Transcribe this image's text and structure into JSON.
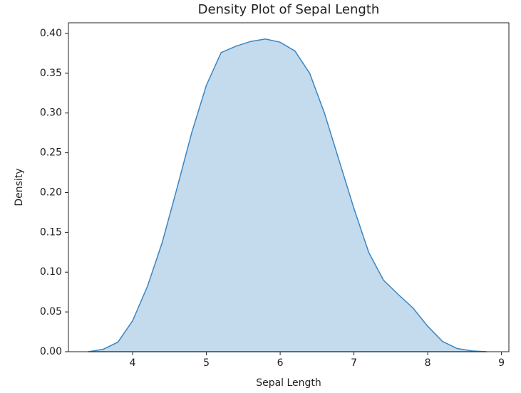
{
  "chart_data": {
    "type": "area",
    "title": "Density Plot of Sepal Length",
    "x_label": "Sepal Length",
    "y_label": "Density",
    "series": [
      {
        "color": "#3a86c2",
        "fill_opacity": 0.3,
        "x": [
          3.4,
          3.6,
          3.8,
          4.0,
          4.2,
          4.4,
          4.6,
          4.8,
          5.0,
          5.2,
          5.4,
          5.6,
          5.8,
          6.0,
          6.2,
          6.4,
          6.6,
          6.8,
          7.0,
          7.2,
          7.4,
          7.6,
          7.8,
          8.0,
          8.2,
          8.4,
          8.6,
          8.8
        ],
        "values": [
          0.0,
          0.003,
          0.012,
          0.039,
          0.082,
          0.137,
          0.205,
          0.275,
          0.335,
          0.376,
          0.384,
          0.39,
          0.393,
          0.389,
          0.378,
          0.35,
          0.3,
          0.24,
          0.18,
          0.125,
          0.09,
          0.072,
          0.055,
          0.032,
          0.013,
          0.004,
          0.001,
          0.0
        ]
      }
    ],
    "xlim": [
      3.13,
      9.1
    ],
    "ylim": [
      0,
      0.4134
    ],
    "xticks": [
      4,
      5,
      6,
      7,
      8,
      9
    ],
    "yticks": [
      {
        "value": 0,
        "label": "0.00"
      },
      {
        "value": 0.05,
        "label": "0.05"
      },
      {
        "value": 0.1,
        "label": "0.10"
      },
      {
        "value": 0.15,
        "label": "0.15"
      },
      {
        "value": 0.2,
        "label": "0.20"
      },
      {
        "value": 0.25,
        "label": "0.25"
      },
      {
        "value": 0.3,
        "label": "0.30"
      },
      {
        "value": 0.35,
        "label": "0.35"
      },
      {
        "value": 0.4,
        "label": "0.40"
      }
    ],
    "grid": false
  }
}
